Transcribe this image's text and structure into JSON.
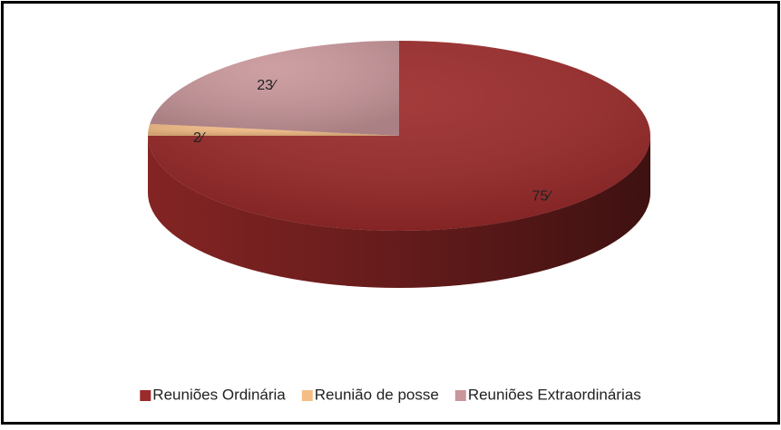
{
  "chart_data": {
    "type": "pie",
    "categories": [
      "Reuniões Ordinária",
      "Reunião de posse",
      "Reuniões Extraordinárias"
    ],
    "values": [
      75,
      2,
      23
    ],
    "value_labels": [
      "75⁄",
      "2⁄",
      "23⁄"
    ],
    "colors": [
      "#9b2a2a",
      "#f5bd86",
      "#c9979b"
    ],
    "legend": "bottom"
  }
}
